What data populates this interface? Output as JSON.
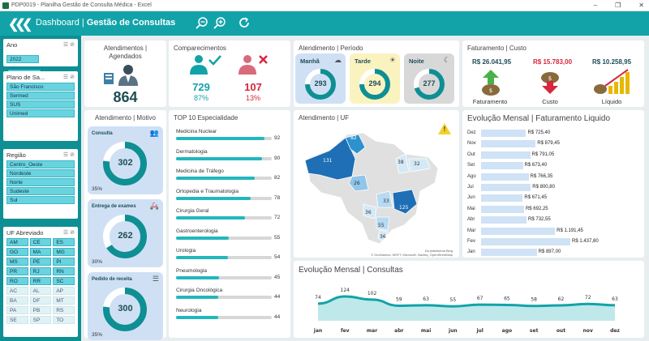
{
  "window": {
    "title": "PDP0019 - Planilha Gestão de Consulta Médica - Excel",
    "controls": [
      "–",
      "❐",
      "✕"
    ]
  },
  "topbar": {
    "nav_part": "Dashboard",
    "sep": " | ",
    "page_part": "Gestão de Consultas"
  },
  "slicers": {
    "ano": {
      "title": "Ano",
      "items": [
        "2022",
        "2023"
      ]
    },
    "plano": {
      "title": "Plano de Sa...",
      "items": [
        "São Francisco",
        "Sermed",
        "SUS",
        "Unimed"
      ]
    },
    "regiao": {
      "title": "Região",
      "items": [
        "Centro_Oeste",
        "Nordeste",
        "Norte",
        "Sudeste",
        "Sul"
      ]
    },
    "uf": {
      "title": "UF Abreviado",
      "items": [
        "AM",
        "CE",
        "ES",
        "GO",
        "MA",
        "MG",
        "MS",
        "PE",
        "PI",
        "PR",
        "RJ",
        "RN",
        "RO",
        "RR",
        "SC",
        "AC",
        "AL",
        "AP",
        "BA",
        "DF",
        "MT",
        "PA",
        "PB",
        "RS",
        "SE",
        "SP",
        "TO"
      ],
      "selected_count": 15
    }
  },
  "atendimentos": {
    "title": "Atendimentos | Agendados",
    "value": "864"
  },
  "comparecimentos": {
    "title": "Comparecimentos",
    "yes_value": "729",
    "yes_pct": "87%",
    "no_value": "107",
    "no_pct": "13%",
    "yes_color": "#11a3a8",
    "no_color": "#d7263d"
  },
  "periodo": {
    "title": "Atendimento | Período",
    "items": [
      {
        "label": "Manhã",
        "value": "293",
        "fraction": 0.34,
        "bg": "#cfe0f5"
      },
      {
        "label": "Tarde",
        "value": "294",
        "fraction": 0.34,
        "bg": "#faf3c0"
      },
      {
        "label": "Noite",
        "value": "277",
        "fraction": 0.32,
        "bg": "#d8d8d8"
      }
    ]
  },
  "faturamento": {
    "title": "Faturamento | Custo",
    "fat_value": "R$ 26.041,95",
    "custo_value": "R$ 15.783,00",
    "liq_value": "R$ 10.258,95",
    "fat_label": "Faturamento",
    "custo_label": "Custo",
    "liq_label": "Líquido"
  },
  "motivo": {
    "title": "Atendimento | Motivo",
    "items": [
      {
        "label": "Consulta",
        "value": "302",
        "pct": "35%",
        "fraction": 0.35
      },
      {
        "label": "Entrega de exames",
        "value": "262",
        "pct": "30%",
        "fraction": 0.3
      },
      {
        "label": "Pedido de receita",
        "value": "300",
        "pct": "35%",
        "fraction": 0.35
      }
    ]
  },
  "top10": {
    "title": "TOP 10 Especialidade",
    "max": 100,
    "items": [
      {
        "label": "Medicina Nuclear",
        "value": 92
      },
      {
        "label": "Dermatologia",
        "value": 90
      },
      {
        "label": "Medicina de Tráfego",
        "value": 82
      },
      {
        "label": "Ortopedia e Traumatologia",
        "value": 78
      },
      {
        "label": "Cirurgia Geral",
        "value": 72
      },
      {
        "label": "Gastroenterologia",
        "value": 55
      },
      {
        "label": "Urologia",
        "value": 54
      },
      {
        "label": "Pneumologia",
        "value": 45
      },
      {
        "label": "Cirurgia Oncológica",
        "value": 44
      },
      {
        "label": "Neurologia",
        "value": 44
      }
    ]
  },
  "uf_map": {
    "title": "Atendimento | UF",
    "labels": [
      "82",
      "131",
      "26",
      "38",
      "32",
      "33",
      "125",
      "36",
      "55",
      "36"
    ],
    "credit_top": "Da plataforma Bing",
    "credit_bottom": "© GeoNames, MSFT, Microsoft, Navteq, OpenStreetMap",
    "info": "!"
  },
  "fat_mensal": {
    "title": "Evolução Mensal | Faturamento Liquido",
    "max": 1437.8,
    "items": [
      {
        "m": "Dez",
        "v": 725.4,
        "label": "R$ 725,40"
      },
      {
        "m": "Nov",
        "v": 879.45,
        "label": "R$ 879,45"
      },
      {
        "m": "Out",
        "v": 791.05,
        "label": "R$ 791,05"
      },
      {
        "m": "Set",
        "v": 673.4,
        "label": "R$ 673,40"
      },
      {
        "m": "Ago",
        "v": 766.35,
        "label": "R$ 766,35"
      },
      {
        "m": "Jul",
        "v": 800.8,
        "label": "R$ 800,80"
      },
      {
        "m": "Jun",
        "v": 671.45,
        "label": "R$ 671,45"
      },
      {
        "m": "Mai",
        "v": 692.25,
        "label": "R$ 692,25"
      },
      {
        "m": "Abr",
        "v": 732.55,
        "label": "R$ 732,55"
      },
      {
        "m": "Mar",
        "v": 1191.45,
        "label": "R$ 1.191,45"
      },
      {
        "m": "Fev",
        "v": 1437.8,
        "label": "R$ 1.437,80"
      },
      {
        "m": "Jan",
        "v": 897.0,
        "label": "R$ 897,00"
      }
    ]
  },
  "chart_data": {
    "type": "area",
    "title": "Evolução Mensal | Consultas",
    "categories": [
      "jan",
      "fev",
      "mar",
      "abr",
      "mai",
      "jun",
      "jul",
      "ago",
      "set",
      "out",
      "nov",
      "dez"
    ],
    "values": [
      74,
      124,
      102,
      59,
      63,
      55,
      67,
      65,
      58,
      62,
      72,
      63
    ],
    "color": "#12a3a8"
  }
}
